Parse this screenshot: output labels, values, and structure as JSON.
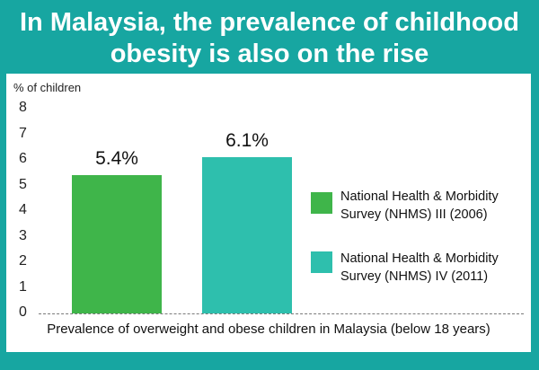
{
  "title_lines": [
    "In Malaysia, the prevalence of childhood",
    "obesity is also on the rise"
  ],
  "chart_data": {
    "type": "bar",
    "title": "In Malaysia, the prevalence of childhood obesity is also on the rise",
    "ylabel": "% of children",
    "xlabel": "Prevalence of overweight and obese children in Malaysia (below 18 years)",
    "ylim": [
      0,
      8
    ],
    "yticks": [
      "0",
      "1",
      "2",
      "3",
      "4",
      "5",
      "6",
      "7",
      "8"
    ],
    "categories": [
      "National Health & Morbidity Survey (NHMS) III (2006)",
      "National Health & Morbidity Survey (NHMS) IV (2011)"
    ],
    "values": [
      5.4,
      6.1
    ],
    "data_labels": [
      "5.4%",
      "6.1%"
    ],
    "colors": [
      "#3fb54a",
      "#2ebfad"
    ],
    "legend": {
      "placement": "right",
      "entries": [
        {
          "line1": "National Health & Morbidity",
          "line2": "Survey (NHMS) III (2006)"
        },
        {
          "line1": "National Health & Morbidity",
          "line2": "Survey (NHMS) IV (2011)"
        }
      ]
    },
    "grid": false
  }
}
